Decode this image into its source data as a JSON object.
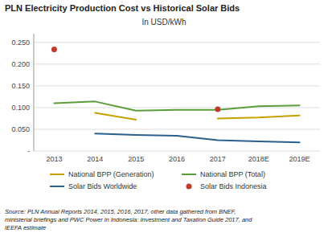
{
  "chart_data": {
    "type": "line",
    "title": "PLN Electricity Production Cost vs Historical Solar Bids",
    "subtitle": "In USD/kWh",
    "categories": [
      "2013",
      "2014",
      "2015",
      "2016",
      "2017",
      "2018E",
      "2019E"
    ],
    "series": [
      {
        "name": "National BPP (Generation)",
        "color": "#c8a000",
        "type": "line",
        "values": [
          null,
          0.088,
          0.072,
          null,
          0.075,
          0.077,
          0.082
        ]
      },
      {
        "name": "National BPP (Total)",
        "color": "#5a9e3a",
        "type": "line",
        "values": [
          0.11,
          0.114,
          0.093,
          0.095,
          0.095,
          0.103,
          0.105
        ]
      },
      {
        "name": "Solar Bids Worldwide",
        "color": "#2a5f8f",
        "type": "line",
        "values": [
          null,
          0.04,
          0.037,
          0.035,
          0.025,
          0.022,
          0.02
        ]
      },
      {
        "name": "Solar Bids Indonesia",
        "color": "#c0392b",
        "type": "scatter",
        "marker": "circle",
        "values": [
          0.234,
          null,
          null,
          null,
          0.096,
          null,
          null
        ]
      }
    ],
    "ylim": [
      0,
      0.27
    ],
    "yticks": [
      {
        "value": 0,
        "label": "-"
      },
      {
        "value": 0.05,
        "label": "0.050"
      },
      {
        "value": 0.1,
        "label": "0.100"
      },
      {
        "value": 0.15,
        "label": "0.150"
      },
      {
        "value": 0.2,
        "label": "0.200"
      },
      {
        "value": 0.25,
        "label": "0.250"
      }
    ],
    "grid": true,
    "legend": "bottom",
    "source": "Source: PLN Annual Reports 2014, 2015, 2016, 2017, other data gathered from BNEF,\nministerial briefings and PWC Power in Indonesia: Investment and Taxation Guide 2017, and\nIEEFA estimate"
  }
}
